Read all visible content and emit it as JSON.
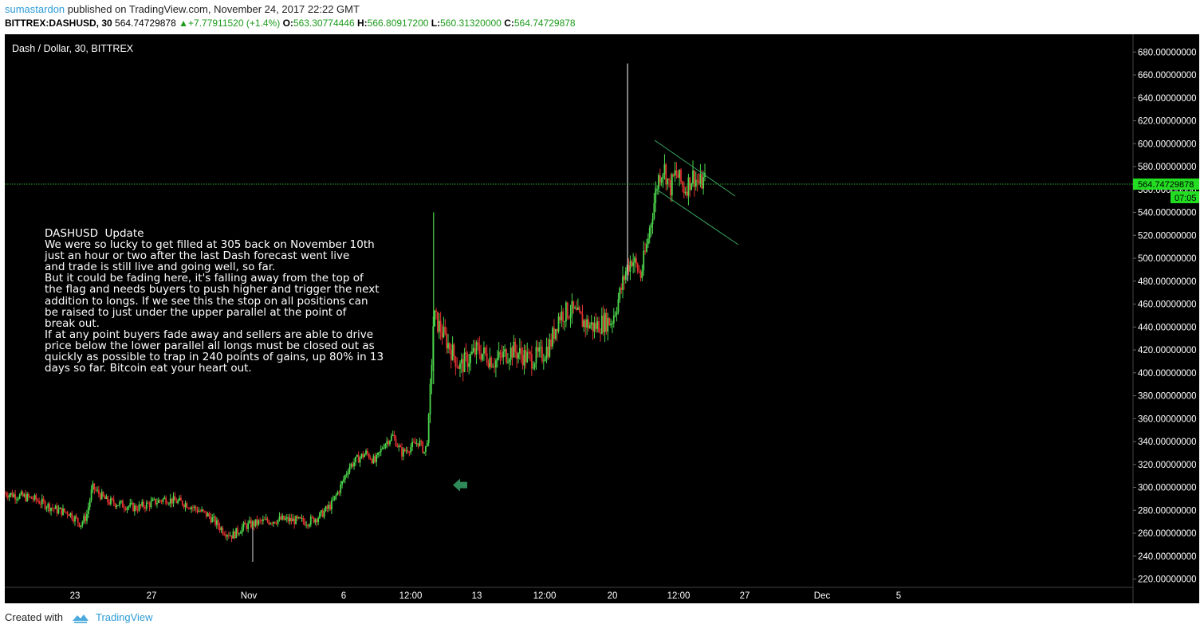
{
  "header": {
    "publisher": "sumastardon",
    "published_text": "published on TradingView.com, November 24, 2017 22:22 GMT",
    "symbol": "BITTREX:DASHUSD, 30",
    "last": "564.74729878",
    "change": "+7.77911520 (+1.4%)",
    "o_label": "O:",
    "o_value": "563.30774446",
    "h_label": "H:",
    "h_value": "566.80917200",
    "l_label": "L:",
    "l_value": "560.31320000",
    "c_label": "C:",
    "c_value": "564.74729878"
  },
  "chart_data": {
    "type": "candlestick",
    "title": "Dash / Dollar, 30, BITTREX",
    "background": "#000000",
    "up_color": "#4cd64c",
    "down_color": "#e03030",
    "ylim": [
      205,
      690
    ],
    "y_ticks": [
      "680.00000000",
      "660.00000000",
      "640.00000000",
      "620.00000000",
      "600.00000000",
      "580.00000000",
      "560.00000000",
      "540.00000000",
      "520.00000000",
      "500.00000000",
      "480.00000000",
      "460.00000000",
      "440.00000000",
      "420.00000000",
      "400.00000000",
      "380.00000000",
      "360.00000000",
      "340.00000000",
      "320.00000000",
      "300.00000000",
      "280.00000000",
      "260.00000000",
      "240.00000000",
      "220.00000000"
    ],
    "x_ticks": [
      "23",
      "27",
      "Nov",
      "6",
      "12:00",
      "13",
      "12:00",
      "20",
      "12:00",
      "27",
      "Dec",
      "5"
    ],
    "price_series": [
      {
        "x": 0,
        "y": 295
      },
      {
        "x": 10,
        "y": 290
      },
      {
        "x": 18,
        "y": 280
      },
      {
        "x": 22,
        "y": 278
      },
      {
        "x": 26,
        "y": 268
      },
      {
        "x": 28,
        "y": 275
      },
      {
        "x": 30,
        "y": 300
      },
      {
        "x": 35,
        "y": 288
      },
      {
        "x": 45,
        "y": 282
      },
      {
        "x": 55,
        "y": 290
      },
      {
        "x": 62,
        "y": 286
      },
      {
        "x": 70,
        "y": 275
      },
      {
        "x": 75,
        "y": 262
      },
      {
        "x": 78,
        "y": 258
      },
      {
        "x": 82,
        "y": 266
      },
      {
        "x": 88,
        "y": 270
      },
      {
        "x": 95,
        "y": 272
      },
      {
        "x": 104,
        "y": 270
      },
      {
        "x": 108,
        "y": 275
      },
      {
        "x": 112,
        "y": 285
      },
      {
        "x": 115,
        "y": 300
      },
      {
        "x": 118,
        "y": 318
      },
      {
        "x": 121,
        "y": 325
      },
      {
        "x": 124,
        "y": 330
      },
      {
        "x": 127,
        "y": 322
      },
      {
        "x": 130,
        "y": 338
      },
      {
        "x": 133,
        "y": 345
      },
      {
        "x": 136,
        "y": 330
      },
      {
        "x": 139,
        "y": 335
      },
      {
        "x": 142,
        "y": 340
      },
      {
        "x": 144,
        "y": 330
      },
      {
        "x": 145,
        "y": 345
      },
      {
        "x": 146,
        "y": 390
      },
      {
        "x": 147,
        "y": 450
      },
      {
        "x": 149,
        "y": 440
      },
      {
        "x": 152,
        "y": 425
      },
      {
        "x": 156,
        "y": 405
      },
      {
        "x": 162,
        "y": 420
      },
      {
        "x": 168,
        "y": 410
      },
      {
        "x": 174,
        "y": 420
      },
      {
        "x": 180,
        "y": 412
      },
      {
        "x": 184,
        "y": 415
      },
      {
        "x": 187,
        "y": 425
      },
      {
        "x": 190,
        "y": 450
      },
      {
        "x": 194,
        "y": 455
      },
      {
        "x": 198,
        "y": 445
      },
      {
        "x": 202,
        "y": 440
      },
      {
        "x": 206,
        "y": 445
      },
      {
        "x": 208,
        "y": 445
      },
      {
        "x": 211,
        "y": 470
      },
      {
        "x": 213,
        "y": 490
      },
      {
        "x": 215,
        "y": 500
      },
      {
        "x": 218,
        "y": 485
      },
      {
        "x": 220,
        "y": 510
      },
      {
        "x": 222,
        "y": 540
      },
      {
        "x": 224,
        "y": 570
      },
      {
        "x": 226,
        "y": 580
      },
      {
        "x": 228,
        "y": 560
      },
      {
        "x": 230,
        "y": 575
      },
      {
        "x": 233,
        "y": 560
      },
      {
        "x": 236,
        "y": 572
      },
      {
        "x": 238,
        "y": 565
      },
      {
        "x": 240,
        "y": 568
      }
    ],
    "annotations": {
      "last_price_label": "564.74729878",
      "countdown_label": "07:05",
      "arrow_at_price": 302,
      "note_title": "DASHUSD  Update",
      "note_lines": [
        "We were so lucky to get filled at 305 back on November 10th",
        "just an hour or two after the last Dash forecast went live",
        "and trade is still live and going well, so far.",
        "But it could be fading here, it's falling away from the top of",
        "the flag and needs buyers to push higher and trigger the next",
        "addition to longs. If we see this the stop on all positions can",
        "be raised to just under the upper parallel at the point of",
        "break out.",
        "If at any point buyers fade away and sellers are able to drive",
        "price below the lower parallel all longs must be closed out as",
        "quickly as possible to trap in 240 points of gains, up 80% in 13",
        "days so far. Bitcoin eat your heart out."
      ]
    }
  },
  "footer": {
    "created_with": "Created with",
    "brand": "TradingView"
  }
}
